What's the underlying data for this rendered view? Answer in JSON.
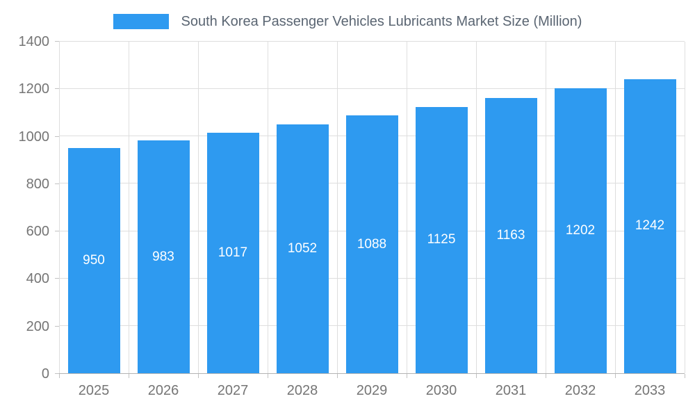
{
  "chart_data": {
    "type": "bar",
    "title": "South Korea Passenger Vehicles Lubricants Market Size (Million)",
    "categories": [
      "2025",
      "2026",
      "2027",
      "2028",
      "2029",
      "2030",
      "2031",
      "2032",
      "2033"
    ],
    "values": [
      950,
      983,
      1017,
      1052,
      1088,
      1125,
      1163,
      1202,
      1242
    ],
    "xlabel": "",
    "ylabel": "",
    "ylim": [
      0,
      1400
    ],
    "ytick_step": 200,
    "grid": true,
    "legend_position": "top",
    "bar_color": "#2e9af0",
    "bar_label_color": "#ffffff",
    "axis_text_color": "#757575"
  }
}
